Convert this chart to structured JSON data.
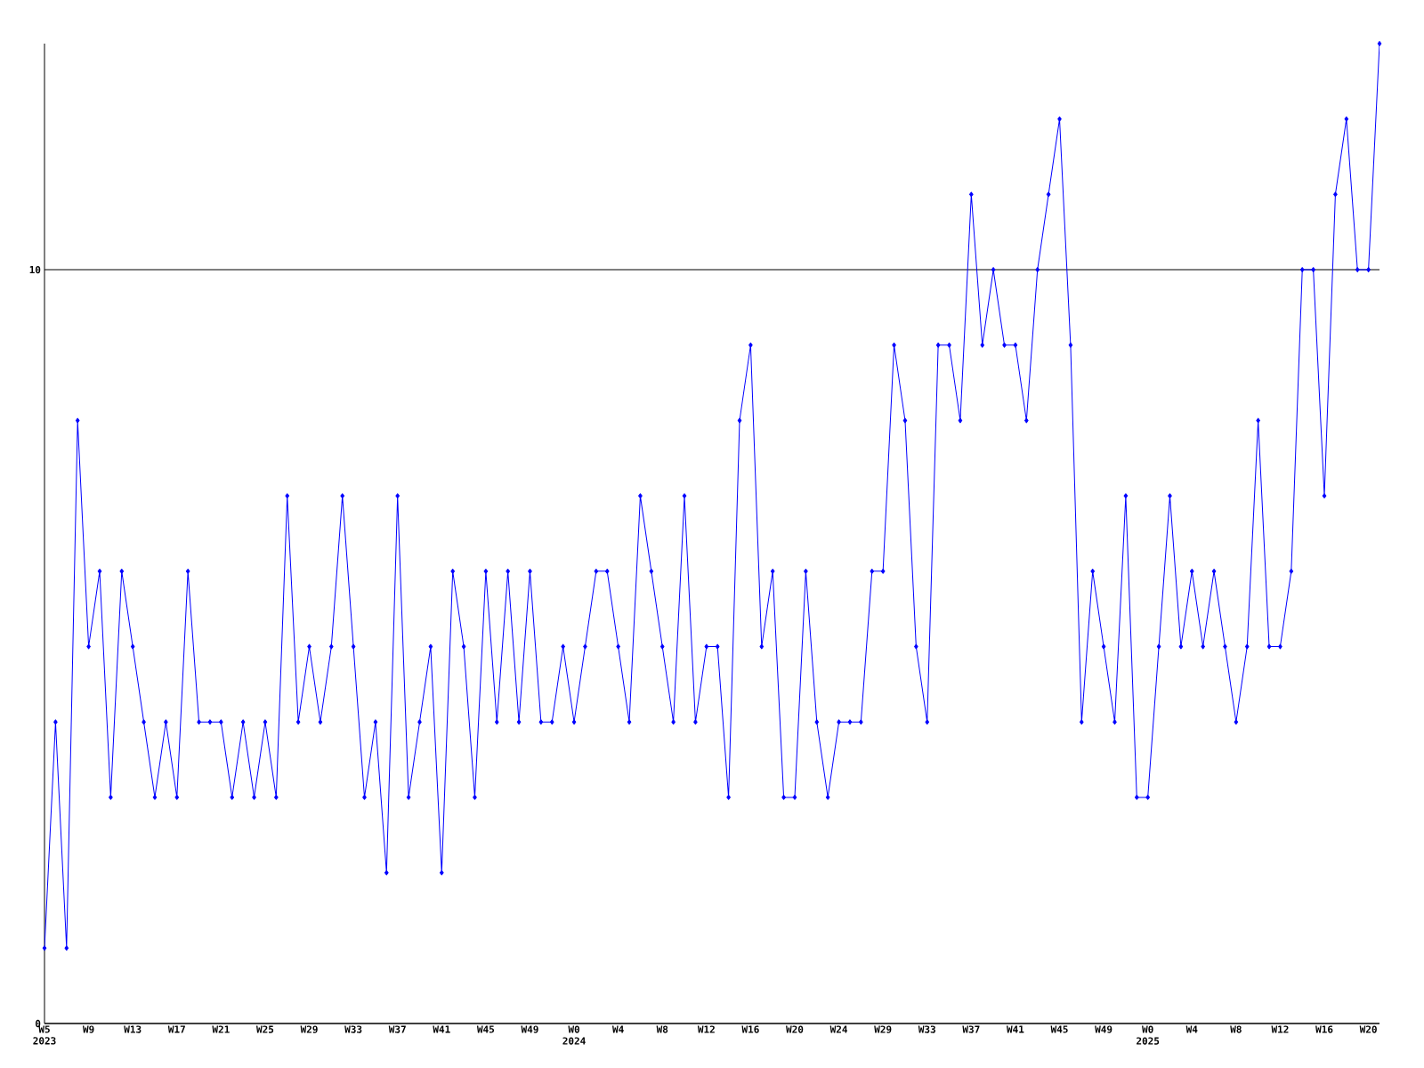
{
  "chart_data": {
    "type": "line",
    "categories": [
      "W5 2023",
      null,
      null,
      null,
      "W9",
      null,
      null,
      null,
      "W13",
      null,
      null,
      null,
      "W17",
      null,
      null,
      null,
      "W21",
      null,
      null,
      null,
      "W25",
      null,
      null,
      null,
      "W29",
      null,
      null,
      null,
      "W33",
      null,
      null,
      null,
      "W37",
      null,
      null,
      null,
      "W41",
      null,
      null,
      null,
      "W45",
      null,
      null,
      null,
      "W49",
      null,
      null,
      null,
      "W0 2024",
      null,
      null,
      null,
      "W4",
      null,
      null,
      null,
      "W8",
      null,
      null,
      null,
      "W12",
      null,
      null,
      null,
      "W16",
      null,
      null,
      null,
      "W20",
      null,
      null,
      null,
      "W24",
      null,
      null,
      null,
      "W29",
      null,
      null,
      null,
      "W33",
      null,
      null,
      null,
      "W37",
      null,
      null,
      null,
      "W41",
      null,
      null,
      null,
      "W45",
      null,
      null,
      null,
      "W49",
      null,
      null,
      null,
      "W0 2025",
      null,
      null,
      null,
      "W4",
      null,
      null,
      null,
      "W8",
      null,
      null,
      null,
      "W12",
      null,
      null,
      null,
      "W16",
      null,
      null,
      null,
      "W20",
      null
    ],
    "series": [
      {
        "color": "#0000ff",
        "values": [
          1,
          4,
          1,
          8,
          5,
          6,
          3,
          6,
          5,
          4,
          3,
          4,
          3,
          6,
          4,
          4,
          4,
          3,
          4,
          3,
          4,
          3,
          7,
          4,
          5,
          4,
          5,
          7,
          5,
          3,
          4,
          2,
          7,
          3,
          4,
          5,
          2,
          6,
          5,
          3,
          6,
          4,
          6,
          4,
          6,
          4,
          4,
          5,
          4,
          5,
          6,
          6,
          5,
          4,
          7,
          6,
          5,
          4,
          7,
          4,
          5,
          5,
          3,
          8,
          9,
          5,
          6,
          3,
          3,
          6,
          4,
          3,
          4,
          4,
          4,
          6,
          6,
          9,
          8,
          5,
          4,
          9,
          9,
          8,
          11,
          9,
          10,
          9,
          9,
          8,
          10,
          11,
          12,
          9,
          4,
          6,
          5,
          4,
          7,
          3,
          3,
          5,
          7,
          5,
          6,
          5,
          6,
          5,
          4,
          5,
          8,
          5,
          5,
          6,
          10,
          10,
          7,
          11,
          12,
          10,
          10,
          13
        ]
      }
    ],
    "ylim": [
      0,
      13
    ],
    "yticks": [
      0,
      10
    ],
    "grid": "y",
    "marker": "diamond",
    "line_style": "solid"
  }
}
